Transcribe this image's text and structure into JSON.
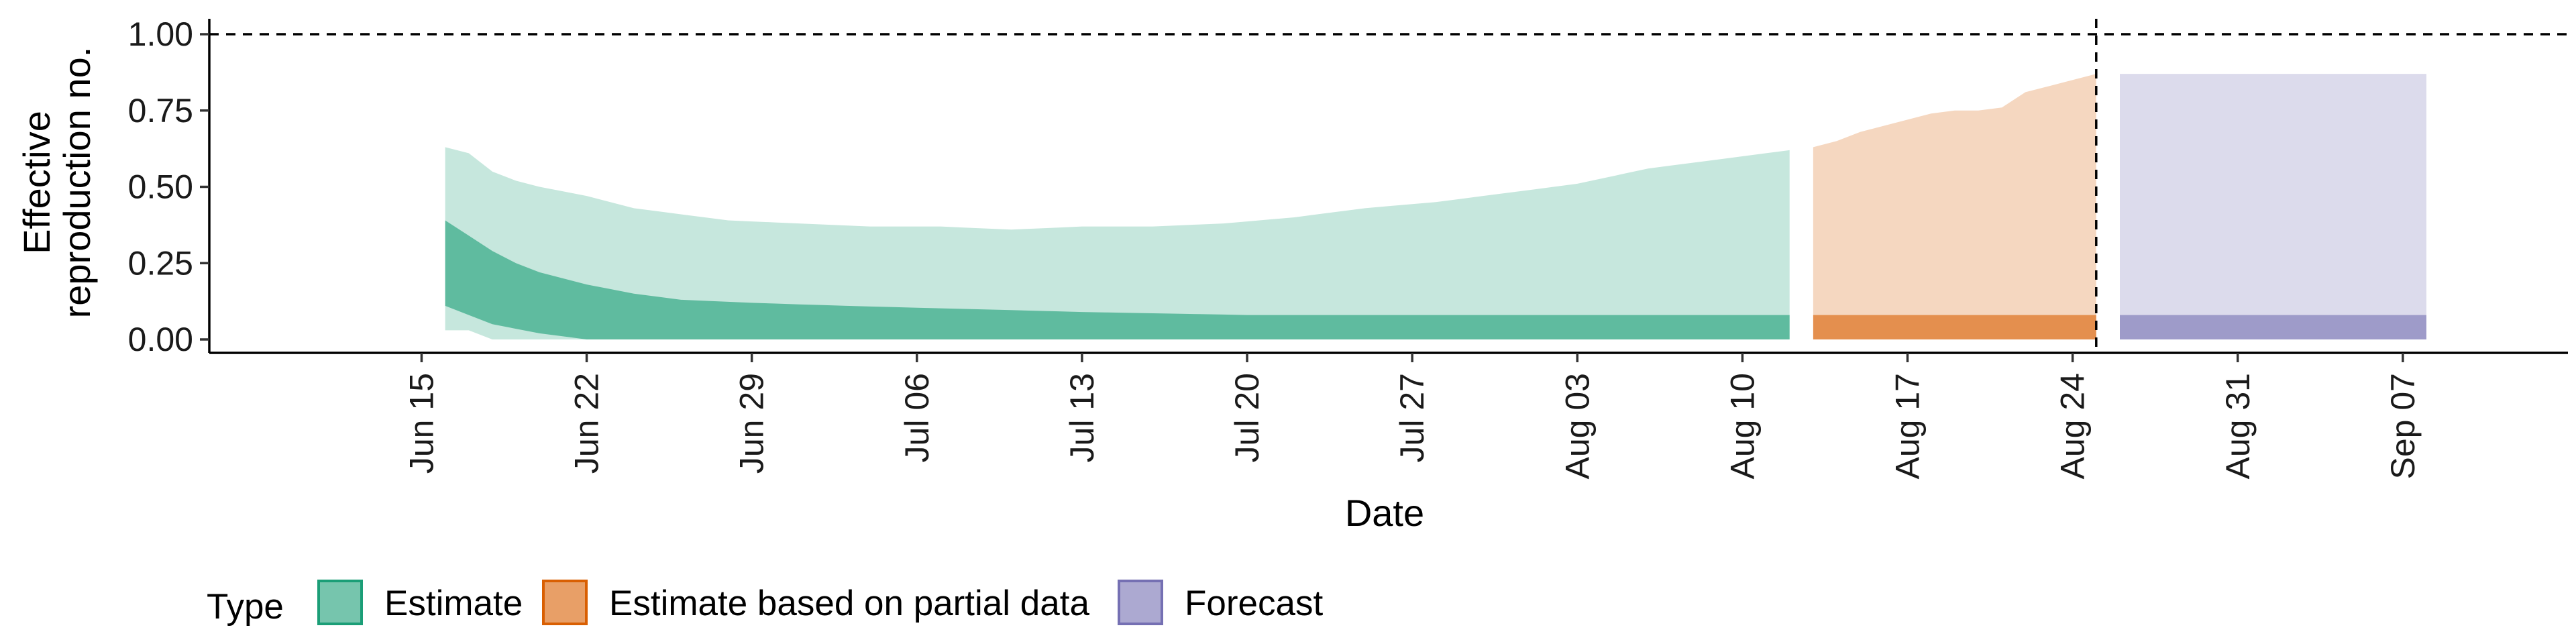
{
  "chart_data": {
    "type": "area",
    "xlabel": "Date",
    "ylabel_lines": [
      "Effective",
      "reproduction no."
    ],
    "ylim": [
      0,
      1.0
    ],
    "yticks": [
      0.0,
      0.25,
      0.5,
      0.75,
      1.0
    ],
    "ytick_labels": [
      "0.00",
      "0.25",
      "0.50",
      "0.75",
      "1.00"
    ],
    "xlim": [
      "2020-06-06",
      "2020-09-14"
    ],
    "xticks": [
      "2020-06-15",
      "2020-06-22",
      "2020-06-29",
      "2020-07-06",
      "2020-07-13",
      "2020-07-20",
      "2020-07-27",
      "2020-08-03",
      "2020-08-10",
      "2020-08-17",
      "2020-08-24",
      "2020-08-31",
      "2020-09-07"
    ],
    "xtick_labels": [
      "Jun 15",
      "Jun 22",
      "Jun 29",
      "Jul 06",
      "Jul 13",
      "Jul 20",
      "Jul 27",
      "Aug 03",
      "Aug 10",
      "Aug 17",
      "Aug 24",
      "Aug 31",
      "Sep 07"
    ],
    "reference_hline": 1.0,
    "reference_vline": "2020-08-25",
    "legend_title": "Type",
    "legend_position": "bottom",
    "series": [
      {
        "name": "Estimate",
        "color": "#1b9e77",
        "outer_upper": [
          [
            "2020-06-16",
            0.63
          ],
          [
            "2020-06-17",
            0.61
          ],
          [
            "2020-06-18",
            0.55
          ],
          [
            "2020-06-19",
            0.52
          ],
          [
            "2020-06-20",
            0.5
          ],
          [
            "2020-06-22",
            0.47
          ],
          [
            "2020-06-24",
            0.43
          ],
          [
            "2020-06-26",
            0.41
          ],
          [
            "2020-06-28",
            0.39
          ],
          [
            "2020-07-01",
            0.38
          ],
          [
            "2020-07-04",
            0.37
          ],
          [
            "2020-07-07",
            0.37
          ],
          [
            "2020-07-10",
            0.36
          ],
          [
            "2020-07-13",
            0.37
          ],
          [
            "2020-07-16",
            0.37
          ],
          [
            "2020-07-19",
            0.38
          ],
          [
            "2020-07-22",
            0.4
          ],
          [
            "2020-07-25",
            0.43
          ],
          [
            "2020-07-28",
            0.45
          ],
          [
            "2020-07-31",
            0.48
          ],
          [
            "2020-08-03",
            0.51
          ],
          [
            "2020-08-06",
            0.56
          ],
          [
            "2020-08-08",
            0.58
          ],
          [
            "2020-08-10",
            0.6
          ],
          [
            "2020-08-12",
            0.62
          ]
        ],
        "outer_lower": [
          [
            "2020-06-16",
            0.03
          ],
          [
            "2020-06-17",
            0.03
          ],
          [
            "2020-06-18",
            0.0
          ],
          [
            "2020-08-12",
            0.0
          ]
        ],
        "inner_upper": [
          [
            "2020-06-16",
            0.39
          ],
          [
            "2020-06-17",
            0.34
          ],
          [
            "2020-06-18",
            0.29
          ],
          [
            "2020-06-19",
            0.25
          ],
          [
            "2020-06-20",
            0.22
          ],
          [
            "2020-06-22",
            0.18
          ],
          [
            "2020-06-24",
            0.15
          ],
          [
            "2020-06-26",
            0.13
          ],
          [
            "2020-06-29",
            0.12
          ],
          [
            "2020-07-03",
            0.11
          ],
          [
            "2020-07-08",
            0.1
          ],
          [
            "2020-07-13",
            0.09
          ],
          [
            "2020-07-20",
            0.08
          ],
          [
            "2020-08-12",
            0.08
          ]
        ],
        "inner_lower": [
          [
            "2020-06-16",
            0.11
          ],
          [
            "2020-06-17",
            0.08
          ],
          [
            "2020-06-18",
            0.05
          ],
          [
            "2020-06-20",
            0.02
          ],
          [
            "2020-06-22",
            0.0
          ],
          [
            "2020-08-12",
            0.0
          ]
        ]
      },
      {
        "name": "Estimate based on partial data",
        "color": "#d95f02",
        "outer_upper": [
          [
            "2020-08-13",
            0.63
          ],
          [
            "2020-08-14",
            0.65
          ],
          [
            "2020-08-15",
            0.68
          ],
          [
            "2020-08-16",
            0.7
          ],
          [
            "2020-08-17",
            0.72
          ],
          [
            "2020-08-18",
            0.74
          ],
          [
            "2020-08-19",
            0.75
          ],
          [
            "2020-08-20",
            0.75
          ],
          [
            "2020-08-21",
            0.76
          ],
          [
            "2020-08-22",
            0.81
          ],
          [
            "2020-08-23",
            0.83
          ],
          [
            "2020-08-24",
            0.85
          ],
          [
            "2020-08-25",
            0.87
          ]
        ],
        "outer_lower": [
          [
            "2020-08-13",
            0.0
          ],
          [
            "2020-08-25",
            0.0
          ]
        ],
        "inner_upper": [
          [
            "2020-08-13",
            0.08
          ],
          [
            "2020-08-25",
            0.08
          ]
        ],
        "inner_lower": [
          [
            "2020-08-13",
            0.0
          ],
          [
            "2020-08-25",
            0.0
          ]
        ]
      },
      {
        "name": "Forecast",
        "color": "#7570b3",
        "outer_upper": [
          [
            "2020-08-26",
            0.87
          ],
          [
            "2020-09-08",
            0.87
          ]
        ],
        "outer_lower": [
          [
            "2020-08-26",
            0.0
          ],
          [
            "2020-09-08",
            0.0
          ]
        ],
        "inner_upper": [
          [
            "2020-08-26",
            0.08
          ],
          [
            "2020-09-08",
            0.08
          ]
        ],
        "inner_lower": [
          [
            "2020-08-26",
            0.0
          ],
          [
            "2020-09-08",
            0.0
          ]
        ]
      }
    ]
  }
}
